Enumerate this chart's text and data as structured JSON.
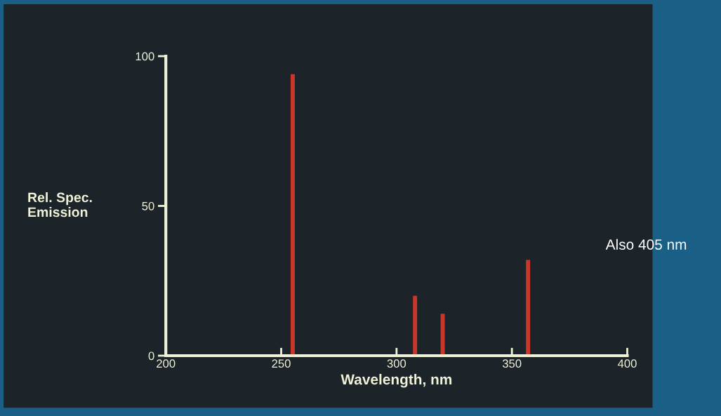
{
  "chart_data": {
    "type": "bar",
    "xlabel": "Wavelength, nm",
    "ylabel": "Rel. Spec.\nEmission",
    "x": [
      255,
      308,
      320,
      357
    ],
    "values": [
      94,
      20,
      14,
      32
    ],
    "color": "#c8372a",
    "xlim": [
      200,
      400
    ],
    "xticks": [
      200,
      250,
      300,
      350,
      400
    ],
    "ylim": [
      0,
      100
    ],
    "yticks": [
      0,
      50,
      100
    ],
    "grid": false,
    "annotations": [
      "Also 405 nm"
    ]
  }
}
